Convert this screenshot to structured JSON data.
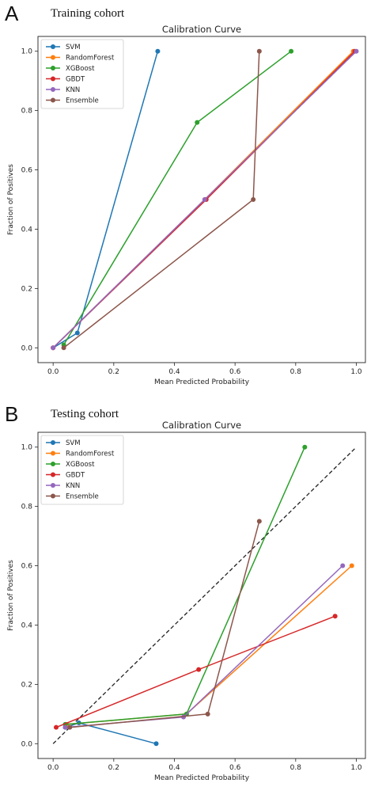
{
  "panels": [
    {
      "letter": "A",
      "cohort": "Training cohort"
    },
    {
      "letter": "B",
      "cohort": "Testing cohort"
    }
  ],
  "chart_data": [
    {
      "type": "line",
      "title": "Calibration Curve",
      "xlabel": "Mean Predicted Probability",
      "ylabel": "Fraction of Positives",
      "xlim": [
        -0.05,
        1.03
      ],
      "ylim": [
        -0.05,
        1.05
      ],
      "xticks": [
        0.0,
        0.2,
        0.4,
        0.6,
        0.8,
        1.0
      ],
      "yticks": [
        0.0,
        0.2,
        0.4,
        0.6,
        0.8,
        1.0
      ],
      "grid": false,
      "legend_position": "top-left",
      "reference_line": {
        "x": [
          0,
          1
        ],
        "y": [
          0,
          1
        ],
        "style": "dashed",
        "color": "#222222"
      },
      "series": [
        {
          "name": "SVM",
          "color": "#1f77b4",
          "x": [
            0.0,
            0.08,
            0.345
          ],
          "y": [
            0.0,
            0.05,
            1.0
          ]
        },
        {
          "name": "RandomForest",
          "color": "#ff7f0e",
          "x": [
            0.0,
            0.5,
            0.99
          ],
          "y": [
            0.0,
            0.5,
            1.0
          ]
        },
        {
          "name": "XGBoost",
          "color": "#2ca02c",
          "x": [
            0.035,
            0.475,
            0.785
          ],
          "y": [
            0.01,
            0.76,
            1.0
          ]
        },
        {
          "name": "GBDT",
          "color": "#d62728",
          "x": [
            0.0,
            0.505,
            0.995
          ],
          "y": [
            0.0,
            0.5,
            1.0
          ]
        },
        {
          "name": "KNN",
          "color": "#9467bd",
          "x": [
            0.0,
            0.5,
            1.0
          ],
          "y": [
            0.0,
            0.5,
            1.0
          ]
        },
        {
          "name": "Ensemble",
          "color": "#8c564b",
          "x": [
            0.035,
            0.66,
            0.68
          ],
          "y": [
            0.0,
            0.5,
            1.0
          ]
        }
      ]
    },
    {
      "type": "line",
      "title": "Calibration Curve",
      "xlabel": "Mean Predicted Probability",
      "ylabel": "Fraction of Positives",
      "xlim": [
        -0.05,
        1.03
      ],
      "ylim": [
        -0.05,
        1.05
      ],
      "xticks": [
        0.0,
        0.2,
        0.4,
        0.6,
        0.8,
        1.0
      ],
      "yticks": [
        0.0,
        0.2,
        0.4,
        0.6,
        0.8,
        1.0
      ],
      "grid": false,
      "legend_position": "top-left",
      "reference_line": {
        "x": [
          0,
          1
        ],
        "y": [
          0,
          1
        ],
        "style": "dashed",
        "color": "#222222"
      },
      "series": [
        {
          "name": "SVM",
          "color": "#1f77b4",
          "x": [
            0.04,
            0.085,
            0.34
          ],
          "y": [
            0.055,
            0.07,
            0.0
          ]
        },
        {
          "name": "RandomForest",
          "color": "#ff7f0e",
          "x": [
            0.045,
            0.44,
            0.985
          ],
          "y": [
            0.065,
            0.1,
            0.6
          ]
        },
        {
          "name": "XGBoost",
          "color": "#2ca02c",
          "x": [
            0.04,
            0.44,
            0.83
          ],
          "y": [
            0.065,
            0.1,
            1.0
          ]
        },
        {
          "name": "GBDT",
          "color": "#d62728",
          "x": [
            0.01,
            0.48,
            0.93
          ],
          "y": [
            0.055,
            0.25,
            0.43
          ]
        },
        {
          "name": "KNN",
          "color": "#9467bd",
          "x": [
            0.04,
            0.43,
            0.955
          ],
          "y": [
            0.055,
            0.09,
            0.6
          ]
        },
        {
          "name": "Ensemble",
          "color": "#8c564b",
          "x": [
            0.055,
            0.51,
            0.68
          ],
          "y": [
            0.055,
            0.1,
            0.75
          ]
        }
      ]
    }
  ]
}
